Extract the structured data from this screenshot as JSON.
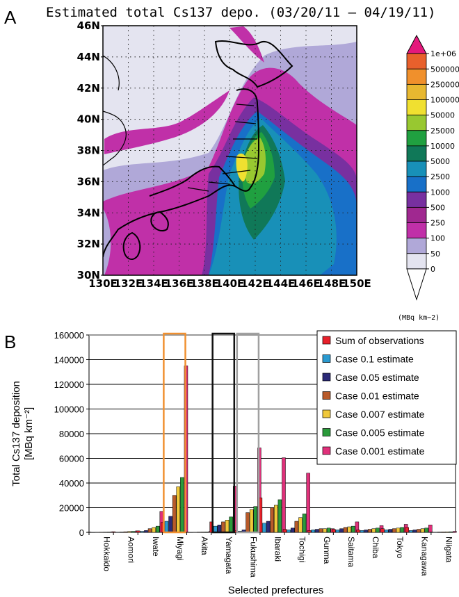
{
  "panel_a": {
    "letter": "A",
    "title": "Estimated total Cs137 depo. (03/20/11 – 04/19/11)",
    "lat_labels": [
      "46N",
      "44N",
      "42N",
      "40N",
      "38N",
      "36N",
      "34N",
      "32N",
      "30N"
    ],
    "lon_labels": [
      "130E",
      "132E",
      "134E",
      "136E",
      "138E",
      "140E",
      "142E",
      "144E",
      "146E",
      "148E",
      "150E"
    ],
    "colorbar": {
      "levels": [
        "1e+06",
        "500000",
        "250000",
        "100000",
        "50000",
        "25000",
        "10000",
        "5000",
        "2500",
        "1000",
        "500",
        "250",
        "100",
        "50",
        "0"
      ],
      "colors": [
        "#e4187c",
        "#e8602c",
        "#f0902c",
        "#e8b830",
        "#f0e030",
        "#98c830",
        "#20a040",
        "#107858",
        "#1890b8",
        "#1870c8",
        "#7830a0",
        "#a02890",
        "#c030a8",
        "#b0a8d8",
        "#e4e4f0",
        "#ffffff"
      ],
      "unit": "(MBq km−2)"
    }
  },
  "panel_b": {
    "letter": "B"
  },
  "chart_data": {
    "type": "bar",
    "ylabel": "Total Cs137 deposition [MBq km⁻²]",
    "xlabel": "Selected prefectures",
    "ylim": [
      0,
      160000
    ],
    "yticks": [
      "0",
      "20000",
      "40000",
      "60000",
      "80000",
      "100000",
      "120000",
      "140000",
      "160000"
    ],
    "categories": [
      "Hokkaido",
      "Aomori",
      "Iwate",
      "Miyagi",
      "Akita",
      "Yamagata",
      "Fukushima",
      "Ibaraki",
      "Tochigi",
      "Gunma",
      "Saitama",
      "Chiba",
      "Tokyo",
      "Kanagawa",
      "Niigata"
    ],
    "series": [
      {
        "name": "Sum of observations",
        "color": "#e8202a",
        "values": [
          300,
          500,
          1200,
          8000,
          200,
          8500,
          1500,
          28000,
          2500,
          1500,
          2500,
          2000,
          3000,
          4000,
          300
        ]
      },
      {
        "name": "Case 0.1 estimate",
        "color": "#2a9ad0",
        "values": [
          100,
          200,
          800,
          9000,
          100,
          5000,
          1000,
          7500,
          2000,
          2000,
          2000,
          1500,
          2000,
          1500,
          200
        ]
      },
      {
        "name": "Case 0.05 estimate",
        "color": "#2b2a78",
        "values": [
          150,
          300,
          1500,
          13000,
          150,
          6000,
          2000,
          9000,
          3500,
          2500,
          3000,
          2000,
          2500,
          2000,
          300
        ]
      },
      {
        "name": "Case 0.01 estimate",
        "color": "#b85a2a",
        "values": [
          200,
          500,
          3000,
          30000,
          250,
          8500,
          16000,
          20000,
          9000,
          3000,
          4000,
          2500,
          3000,
          2500,
          400
        ]
      },
      {
        "name": "Case 0.007 estimate",
        "color": "#f0c83a",
        "values": [
          250,
          700,
          4000,
          37000,
          300,
          10000,
          18500,
          22000,
          12000,
          3000,
          4500,
          3000,
          3500,
          3000,
          450
        ]
      },
      {
        "name": "Case 0.005 estimate",
        "color": "#2a9a3a",
        "values": [
          300,
          800,
          5000,
          44500,
          350,
          12500,
          21000,
          26500,
          15000,
          3500,
          5000,
          3500,
          4000,
          3500,
          500
        ]
      },
      {
        "name": "Case 0.001 estimate",
        "color": "#e0307a",
        "values": [
          500,
          1200,
          17000,
          135000,
          700,
          37500,
          68500,
          60500,
          48000,
          3000,
          8500,
          5500,
          6500,
          6000,
          800
        ]
      }
    ],
    "highlight_boxes": [
      {
        "category_index": 3,
        "color": "#f09030"
      },
      {
        "category_index": 5,
        "color": "#111111"
      },
      {
        "category_index": 6,
        "color": "#a0a0a0"
      }
    ],
    "legend_position": "top-right"
  }
}
